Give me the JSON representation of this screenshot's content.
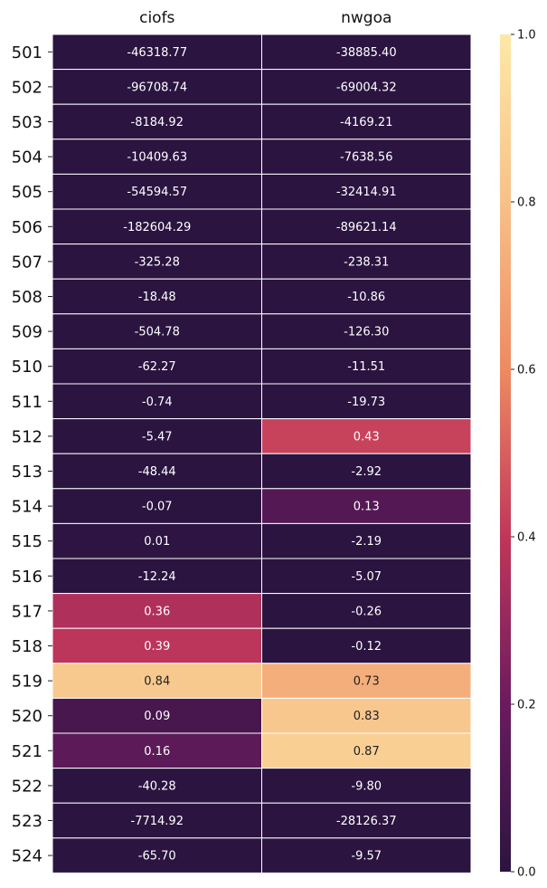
{
  "chart_data": {
    "type": "heatmap",
    "title": "",
    "xlabel": "",
    "ylabel": "",
    "columns": [
      "ciofs",
      "nwgoa"
    ],
    "rows": [
      "501",
      "502",
      "503",
      "504",
      "505",
      "506",
      "507",
      "508",
      "509",
      "510",
      "511",
      "512",
      "513",
      "514",
      "515",
      "516",
      "517",
      "518",
      "519",
      "520",
      "521",
      "522",
      "523",
      "524"
    ],
    "values": [
      [
        -46318.77,
        -38885.4
      ],
      [
        -96708.74,
        -69004.32
      ],
      [
        -8184.92,
        -4169.21
      ],
      [
        -10409.63,
        -7638.56
      ],
      [
        -54594.57,
        -32414.91
      ],
      [
        -182604.29,
        -89621.14
      ],
      [
        -325.28,
        -238.31
      ],
      [
        -18.48,
        -10.86
      ],
      [
        -504.78,
        -126.3
      ],
      [
        -62.27,
        -11.51
      ],
      [
        -0.74,
        -19.73
      ],
      [
        -5.47,
        0.43
      ],
      [
        -48.44,
        -2.92
      ],
      [
        -0.07,
        0.13
      ],
      [
        0.01,
        -2.19
      ],
      [
        -12.24,
        -5.07
      ],
      [
        0.36,
        -0.26
      ],
      [
        0.39,
        -0.12
      ],
      [
        0.84,
        0.73
      ],
      [
        0.09,
        0.83
      ],
      [
        0.16,
        0.87
      ],
      [
        -40.28,
        -9.8
      ],
      [
        -7714.92,
        -28126.37
      ],
      [
        -65.7,
        -9.57
      ]
    ],
    "labels": [
      [
        "-46318.77",
        "-38885.40"
      ],
      [
        "-96708.74",
        "-69004.32"
      ],
      [
        "-8184.92",
        "-4169.21"
      ],
      [
        "-10409.63",
        "-7638.56"
      ],
      [
        "-54594.57",
        "-32414.91"
      ],
      [
        "-182604.29",
        "-89621.14"
      ],
      [
        "-325.28",
        "-238.31"
      ],
      [
        "-18.48",
        "-10.86"
      ],
      [
        "-504.78",
        "-126.30"
      ],
      [
        "-62.27",
        "-11.51"
      ],
      [
        "-0.74",
        "-19.73"
      ],
      [
        "-5.47",
        "0.43"
      ],
      [
        "-48.44",
        "-2.92"
      ],
      [
        "-0.07",
        "0.13"
      ],
      [
        "0.01",
        "-2.19"
      ],
      [
        "-12.24",
        "-5.07"
      ],
      [
        "0.36",
        "-0.26"
      ],
      [
        "0.39",
        "-0.12"
      ],
      [
        "0.84",
        "0.73"
      ],
      [
        "0.09",
        "0.83"
      ],
      [
        "0.16",
        "0.87"
      ],
      [
        "-40.28",
        "-9.80"
      ],
      [
        "-7714.92",
        "-28126.37"
      ],
      [
        "-65.70",
        "-9.57"
      ]
    ],
    "colorbar": {
      "vmin": 0.0,
      "vmax": 1.0,
      "ticks": [
        "0.0",
        "0.2",
        "0.4",
        "0.6",
        "0.8",
        "1.0"
      ],
      "colormap": "flare-like",
      "color_stops": [
        "#2b1440",
        "#6a1b5e",
        "#c0365a",
        "#ee8a61",
        "#f7c189",
        "#fde8a8"
      ]
    },
    "colors": {
      "grid_line": "#ffffff",
      "light_text": "#ffffff",
      "dark_text": "#222222"
    }
  }
}
